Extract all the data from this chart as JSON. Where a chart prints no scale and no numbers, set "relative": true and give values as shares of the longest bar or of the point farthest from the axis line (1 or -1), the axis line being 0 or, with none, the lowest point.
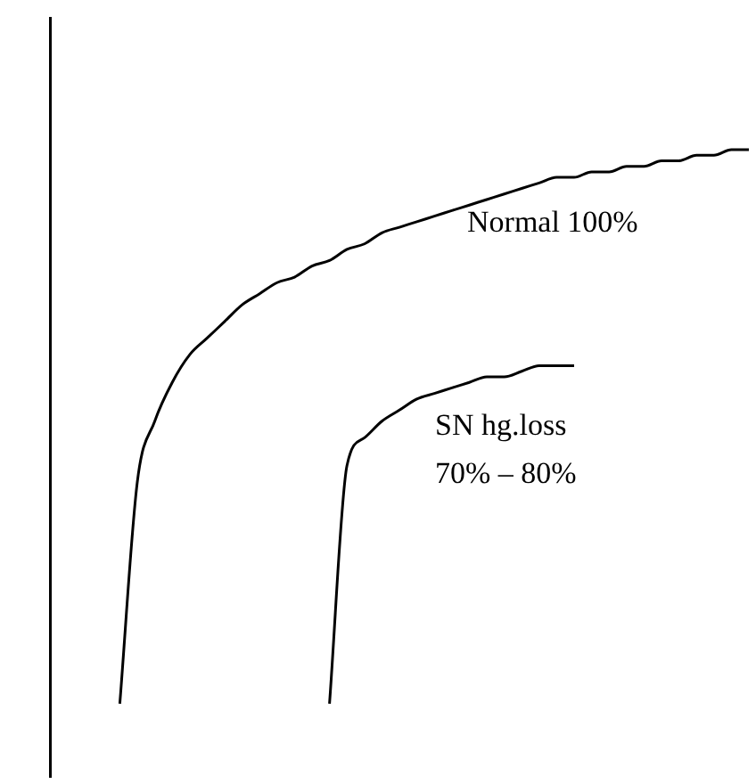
{
  "chart_data": {
    "type": "line",
    "relative": true,
    "marker": "none",
    "line_style": "solid",
    "legend": false,
    "categories": [
      null,
      null,
      null,
      null,
      null,
      null,
      null,
      null,
      null,
      null,
      null,
      null,
      null,
      null,
      null,
      null,
      null,
      null,
      null,
      null,
      null,
      null,
      null,
      null,
      null,
      null,
      null,
      null,
      null,
      null,
      null,
      null,
      null,
      null,
      null,
      null,
      null,
      null,
      null,
      null,
      null
    ],
    "series": [
      {
        "color": "#000000",
        "values": [
          null,
          null,
          null,
          null,
          0,
          0.4,
          0.51,
          0.58,
          0.63,
          0.66,
          0.69,
          0.72,
          0.74,
          0.76,
          0.77,
          0.79,
          0.8,
          0.82,
          0.83,
          0.85,
          0.86,
          0.87,
          0.88,
          0.89,
          0.9,
          0.91,
          0.92,
          0.93,
          0.94,
          0.95,
          0.95,
          0.96,
          0.96,
          0.97,
          0.97,
          0.98,
          0.98,
          0.99,
          0.99,
          1,
          1
        ]
      },
      {
        "color": "#000000",
        "values": [
          null,
          null,
          null,
          null,
          null,
          null,
          null,
          null,
          null,
          null,
          null,
          null,
          null,
          null,
          null,
          null,
          0,
          0.43,
          0.48,
          0.51,
          0.53,
          0.55,
          0.56,
          0.57,
          0.58,
          0.59,
          0.59,
          0.6,
          0.61,
          0.61,
          0.61,
          null,
          null,
          null,
          null,
          null,
          null,
          null,
          null,
          null,
          null
        ]
      }
    ],
    "annotations": [
      "Normal 100%",
      "SN hg.loss\n70% – 80%"
    ]
  }
}
